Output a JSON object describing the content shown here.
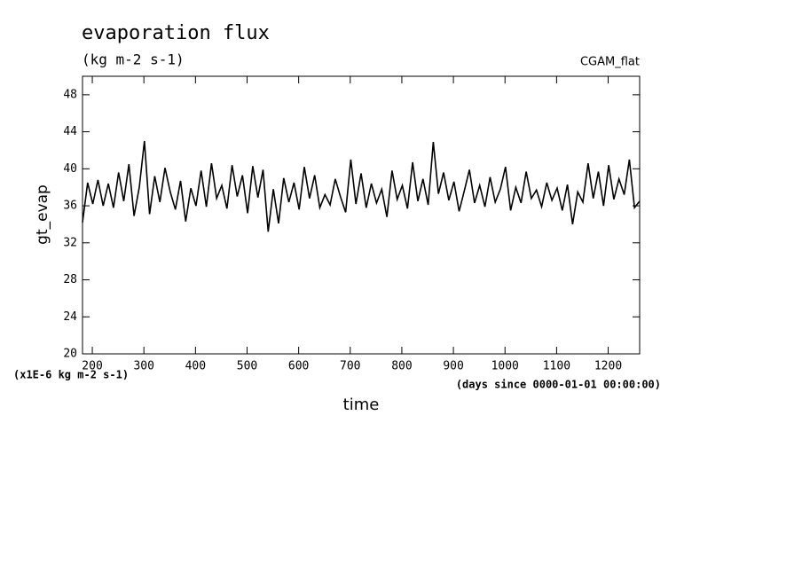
{
  "chart_data": {
    "type": "line",
    "title": "evaporation flux",
    "subtitle": "(kg m-2 s-1)",
    "annotation": "CGAM_flat",
    "y_label": "gt_evap",
    "x_label": "time",
    "y_units": "(x1E-6 kg m-2 s-1)",
    "x_units": "(days since 0000-01-01 00:00:00)",
    "color": "#000000",
    "xlim": [
      181,
      1261
    ],
    "xticks": [
      200,
      300,
      400,
      500,
      600,
      700,
      800,
      900,
      1000,
      1100,
      1200
    ],
    "ylim": [
      20,
      50
    ],
    "yticks": [
      20,
      24,
      28,
      32,
      36,
      40,
      44,
      48
    ],
    "x": [
      181,
      191,
      201,
      211,
      221,
      231,
      241,
      251,
      261,
      271,
      281,
      291,
      301,
      311,
      321,
      331,
      341,
      351,
      361,
      371,
      381,
      391,
      401,
      411,
      421,
      431,
      441,
      451,
      461,
      471,
      481,
      491,
      501,
      511,
      521,
      531,
      541,
      551,
      561,
      571,
      581,
      591,
      601,
      611,
      621,
      631,
      641,
      651,
      661,
      671,
      681,
      691,
      701,
      711,
      721,
      731,
      741,
      751,
      761,
      771,
      781,
      791,
      801,
      811,
      821,
      831,
      841,
      851,
      861,
      871,
      881,
      891,
      901,
      911,
      921,
      931,
      941,
      951,
      961,
      971,
      981,
      991,
      1001,
      1011,
      1021,
      1031,
      1041,
      1051,
      1061,
      1071,
      1081,
      1091,
      1101,
      1111,
      1121,
      1131,
      1141,
      1151,
      1161,
      1171,
      1181,
      1191,
      1201,
      1211,
      1221,
      1231,
      1241,
      1251,
      1261
    ],
    "values": [
      34.2,
      38.5,
      36.2,
      38.8,
      36.0,
      38.4,
      35.8,
      39.6,
      36.5,
      40.5,
      34.9,
      38.0,
      43.0,
      35.1,
      39.2,
      36.4,
      40.1,
      37.5,
      35.6,
      38.7,
      34.3,
      37.9,
      36.0,
      39.8,
      35.9,
      40.6,
      36.8,
      38.2,
      35.7,
      40.4,
      37.0,
      39.3,
      35.2,
      40.3,
      36.9,
      39.9,
      33.2,
      37.8,
      34.1,
      39.0,
      36.4,
      38.5,
      35.6,
      40.2,
      36.8,
      39.3,
      35.8,
      37.2,
      36.1,
      38.9,
      37.0,
      35.3,
      41.0,
      36.2,
      39.5,
      35.8,
      38.4,
      36.3,
      37.8,
      34.8,
      39.8,
      36.7,
      38.2,
      35.7,
      40.7,
      36.5,
      38.9,
      36.1,
      42.9,
      37.3,
      39.6,
      36.6,
      38.6,
      35.4,
      37.6,
      39.9,
      36.3,
      38.2,
      35.9,
      39.1,
      36.4,
      37.8,
      40.2,
      35.5,
      38.0,
      36.3,
      39.7,
      36.8,
      37.7,
      35.9,
      38.5,
      36.6,
      37.9,
      35.5,
      38.3,
      34.0,
      37.5,
      36.4,
      40.6,
      36.8,
      39.7,
      36.0,
      40.4,
      36.7,
      38.9,
      37.2,
      41.0,
      35.8,
      36.5
    ]
  }
}
